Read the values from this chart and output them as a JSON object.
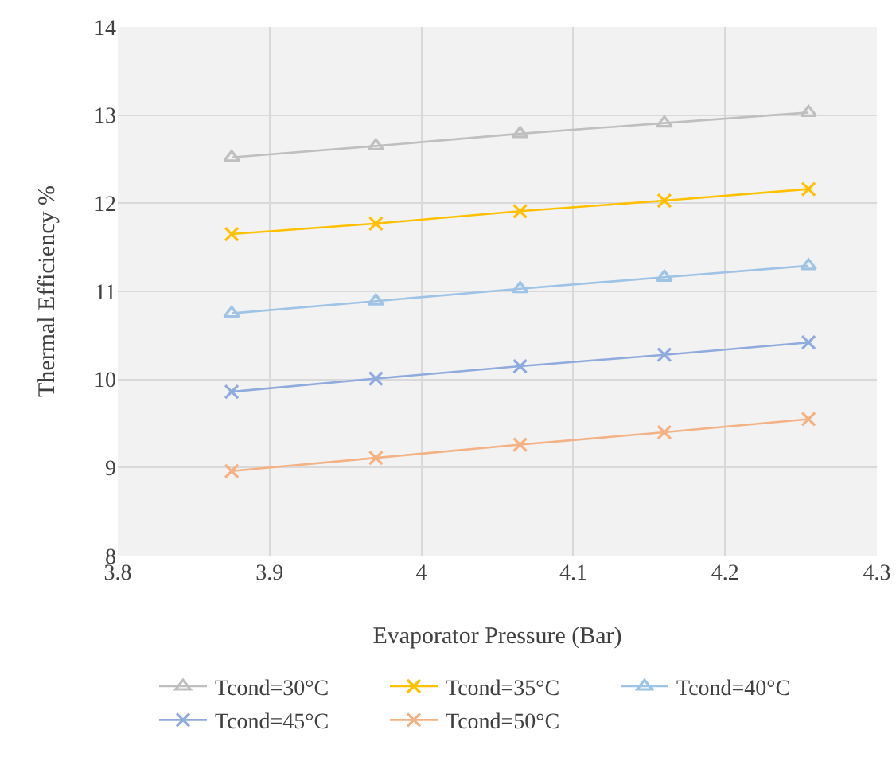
{
  "chart_data": {
    "type": "line",
    "xlabel": "Evaporator Pressure (Bar)",
    "ylabel": "Thermal Efficiency %",
    "x": [
      3.875,
      3.97,
      4.065,
      4.16,
      4.255
    ],
    "series": [
      {
        "name": "Tcond=30°C",
        "color": "#bfbfbf",
        "marker": "triangle",
        "values": [
          12.52,
          12.65,
          12.79,
          12.91,
          13.03
        ]
      },
      {
        "name": "Tcond=35°C",
        "color": "#ffc000",
        "marker": "cross",
        "values": [
          11.65,
          11.77,
          11.91,
          12.03,
          12.16
        ]
      },
      {
        "name": "Tcond=40°C",
        "color": "#9dc3e6",
        "marker": "triangle",
        "values": [
          10.75,
          10.89,
          11.03,
          11.16,
          11.29
        ]
      },
      {
        "name": "Tcond=45°C",
        "color": "#8faadc",
        "marker": "cross",
        "values": [
          9.86,
          10.01,
          10.15,
          10.28,
          10.42
        ]
      },
      {
        "name": "Tcond=50°C",
        "color": "#f4b183",
        "marker": "cross",
        "values": [
          8.96,
          9.11,
          9.26,
          9.4,
          9.55
        ]
      }
    ],
    "xlim": [
      3.8,
      4.3
    ],
    "xticks": [
      3.8,
      3.9,
      4,
      4.1,
      4.2,
      4.3
    ],
    "ylim": [
      8,
      14
    ],
    "yticks": [
      8,
      9,
      10,
      11,
      12,
      13,
      14
    ],
    "grid": true,
    "legend": "bottom",
    "line_style": "solid"
  }
}
